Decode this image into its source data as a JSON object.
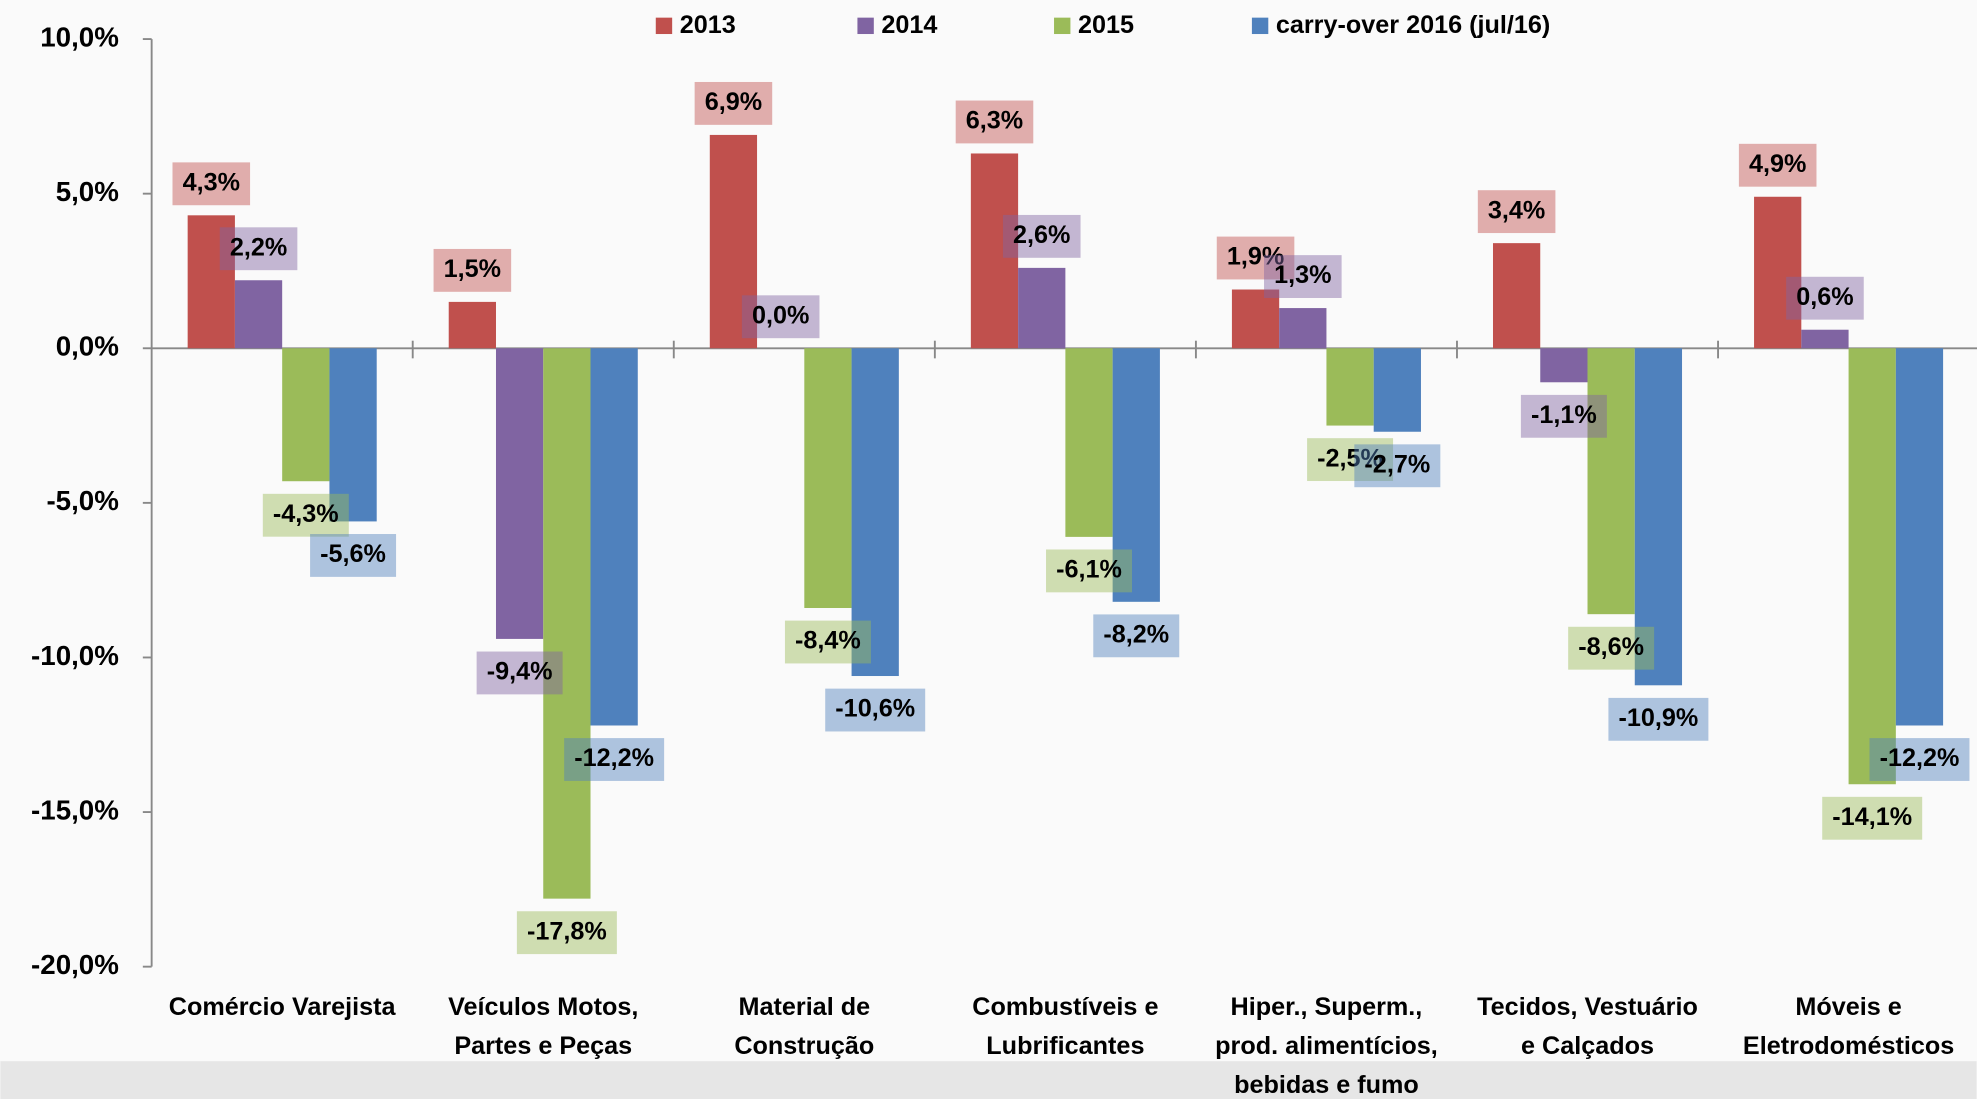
{
  "chart_data": {
    "type": "bar",
    "categories": [
      [
        "Comércio Varejista"
      ],
      [
        "Veículos Motos,",
        "Partes e Peças"
      ],
      [
        "Material de",
        "Construção"
      ],
      [
        "Combustíveis e",
        "Lubrificantes"
      ],
      [
        "Hiper., Superm.,",
        "prod. alimentícios,",
        "bebidas e fumo"
      ],
      [
        "Tecidos, Vestuário",
        "e Calçados"
      ],
      [
        "Móveis e",
        "Eletrodomésticos"
      ]
    ],
    "series": [
      {
        "name": "2013",
        "color": "#c0504d",
        "values": [
          4.3,
          1.5,
          6.9,
          6.3,
          1.9,
          3.4,
          4.9
        ],
        "value_labels": [
          "4,3%",
          "1,5%",
          "6,9%",
          "6,3%",
          "1,9%",
          "3,4%",
          "4,9%"
        ]
      },
      {
        "name": "2014",
        "color": "#8064a2",
        "values": [
          2.2,
          -9.4,
          0.0,
          2.6,
          1.3,
          -1.1,
          0.6
        ],
        "value_labels": [
          "2,2%",
          "-9,4%",
          "0,0%",
          "2,6%",
          "1,3%",
          "-1,1%",
          "0,6%"
        ]
      },
      {
        "name": "2015",
        "color": "#9bbb59",
        "values": [
          -4.3,
          -17.8,
          -8.4,
          -6.1,
          -2.5,
          -8.6,
          -14.1
        ],
        "value_labels": [
          "-4,3%",
          "-17,8%",
          "-8,4%",
          "-6,1%",
          "-2,5%",
          "-8,6%",
          "-14,1%"
        ]
      },
      {
        "name": "carry-over 2016 (jul/16)",
        "color": "#4f81bd",
        "values": [
          -5.6,
          -12.2,
          -10.6,
          -8.2,
          -2.7,
          -10.9,
          -12.2
        ],
        "value_labels": [
          "-5,6%",
          "-12,2%",
          "-10,6%",
          "-8,2%",
          "-2,7%",
          "-10,9%",
          "-12,2%"
        ]
      }
    ],
    "ylim": [
      -20,
      10
    ],
    "yticks": [
      {
        "value": -20,
        "label": "-20,0%"
      },
      {
        "value": -15,
        "label": "-15,0%"
      },
      {
        "value": -10,
        "label": "-10,0%"
      },
      {
        "value": -5,
        "label": "-5,0%"
      },
      {
        "value": 0,
        "label": "0,0%"
      },
      {
        "value": 5,
        "label": "5,0%"
      },
      {
        "value": 10,
        "label": "10,0%"
      }
    ],
    "legend": "top"
  }
}
